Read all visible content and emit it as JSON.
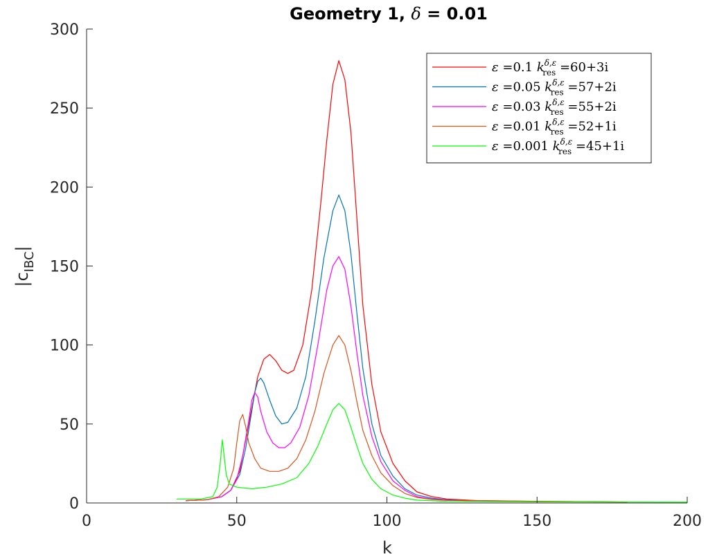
{
  "chart_data": {
    "type": "line",
    "title_prefix": "Geometry 1, ",
    "title_delta": "δ",
    "title_suffix": " = 0.01",
    "xlabel": "k",
    "ylabel_main": "|c",
    "ylabel_sub": "IBC",
    "ylabel_end": "|",
    "xlim": [
      0,
      200
    ],
    "ylim": [
      0,
      300
    ],
    "xticks": [
      0,
      50,
      100,
      150,
      200
    ],
    "yticks": [
      0,
      50,
      100,
      150,
      200,
      250,
      300
    ],
    "legend_position": "top-right",
    "series": [
      {
        "name": "ε =0.1 k_res^{δ,ε} =60+3i",
        "eps": "0.1",
        "kres": "=60+3i",
        "color": "#ff0000",
        "points": [
          [
            33,
            1.5
          ],
          [
            40,
            2
          ],
          [
            45,
            4
          ],
          [
            48,
            8
          ],
          [
            51,
            20
          ],
          [
            54,
            50
          ],
          [
            57,
            80
          ],
          [
            59,
            91
          ],
          [
            61,
            94
          ],
          [
            63,
            90
          ],
          [
            65,
            84
          ],
          [
            67,
            82
          ],
          [
            69,
            84
          ],
          [
            72,
            100
          ],
          [
            75,
            135
          ],
          [
            78,
            190
          ],
          [
            80,
            230
          ],
          [
            82,
            265
          ],
          [
            84,
            280
          ],
          [
            86,
            268
          ],
          [
            88,
            235
          ],
          [
            90,
            180
          ],
          [
            92,
            125
          ],
          [
            95,
            75
          ],
          [
            98,
            45
          ],
          [
            102,
            25
          ],
          [
            106,
            14
          ],
          [
            110,
            7
          ],
          [
            115,
            4
          ],
          [
            120,
            2.5
          ],
          [
            130,
            1.5
          ],
          [
            150,
            1
          ],
          [
            180,
            0.6
          ]
        ]
      },
      {
        "name": "ε =0.05 k_res^{δ,ε} =57+2i",
        "eps": "0.05",
        "kres": "=57+2i",
        "color": "#0072bd",
        "points": [
          [
            33,
            1.5
          ],
          [
            40,
            2
          ],
          [
            45,
            4
          ],
          [
            48,
            8
          ],
          [
            51,
            18
          ],
          [
            53,
            35
          ],
          [
            55,
            58
          ],
          [
            56,
            70
          ],
          [
            57,
            77
          ],
          [
            58,
            79
          ],
          [
            59,
            76
          ],
          [
            61,
            65
          ],
          [
            63,
            55
          ],
          [
            65,
            50
          ],
          [
            67,
            51
          ],
          [
            70,
            60
          ],
          [
            73,
            80
          ],
          [
            76,
            115
          ],
          [
            79,
            155
          ],
          [
            82,
            185
          ],
          [
            84,
            195
          ],
          [
            86,
            185
          ],
          [
            88,
            158
          ],
          [
            90,
            120
          ],
          [
            92,
            85
          ],
          [
            95,
            50
          ],
          [
            98,
            30
          ],
          [
            102,
            17
          ],
          [
            106,
            9
          ],
          [
            110,
            5
          ],
          [
            115,
            3
          ],
          [
            120,
            2
          ],
          [
            130,
            1.2
          ],
          [
            150,
            0.8
          ],
          [
            180,
            0.6
          ]
        ]
      },
      {
        "name": "ε =0.03 k_res^{δ,ε} =55+2i",
        "eps": "0.03",
        "kres": "=55+2i",
        "color": "#ff00ff",
        "points": [
          [
            33,
            1.5
          ],
          [
            40,
            2
          ],
          [
            45,
            4
          ],
          [
            48,
            8
          ],
          [
            50,
            15
          ],
          [
            52,
            30
          ],
          [
            54,
            52
          ],
          [
            55,
            65
          ],
          [
            56,
            70
          ],
          [
            57,
            67
          ],
          [
            58,
            58
          ],
          [
            60,
            45
          ],
          [
            62,
            38
          ],
          [
            64,
            35
          ],
          [
            66,
            35
          ],
          [
            68,
            38
          ],
          [
            71,
            48
          ],
          [
            74,
            68
          ],
          [
            77,
            100
          ],
          [
            80,
            135
          ],
          [
            82,
            150
          ],
          [
            84,
            156
          ],
          [
            86,
            148
          ],
          [
            88,
            125
          ],
          [
            90,
            95
          ],
          [
            92,
            68
          ],
          [
            95,
            42
          ],
          [
            98,
            26
          ],
          [
            102,
            14
          ],
          [
            106,
            8
          ],
          [
            110,
            4
          ],
          [
            115,
            2.5
          ],
          [
            120,
            1.8
          ],
          [
            130,
            1.2
          ],
          [
            150,
            0.8
          ],
          [
            180,
            0.6
          ]
        ]
      },
      {
        "name": "ε =0.01 k_res^{δ,ε} =52+1i",
        "eps": "0.01",
        "kres": "=52+1i",
        "color": "#d95319",
        "points": [
          [
            33,
            1.5
          ],
          [
            40,
            2
          ],
          [
            44,
            4
          ],
          [
            47,
            10
          ],
          [
            49,
            22
          ],
          [
            50,
            38
          ],
          [
            51,
            52
          ],
          [
            52,
            56
          ],
          [
            53,
            48
          ],
          [
            54,
            38
          ],
          [
            56,
            28
          ],
          [
            58,
            22
          ],
          [
            61,
            20
          ],
          [
            64,
            20
          ],
          [
            67,
            22
          ],
          [
            70,
            28
          ],
          [
            73,
            40
          ],
          [
            76,
            58
          ],
          [
            79,
            82
          ],
          [
            82,
            100
          ],
          [
            84,
            106
          ],
          [
            86,
            100
          ],
          [
            88,
            84
          ],
          [
            90,
            64
          ],
          [
            92,
            46
          ],
          [
            95,
            30
          ],
          [
            98,
            19
          ],
          [
            102,
            11
          ],
          [
            106,
            6
          ],
          [
            110,
            3.5
          ],
          [
            115,
            2.2
          ],
          [
            120,
            1.6
          ],
          [
            133,
            1.5
          ],
          [
            150,
            1
          ],
          [
            180,
            0.6
          ]
        ]
      },
      {
        "name": "ε =0.001 k_res^{δ,ε} =45+1i",
        "eps": "0.001",
        "kres": "=45+1i",
        "color": "#00ff00",
        "points": [
          [
            30,
            2.5
          ],
          [
            38,
            2.5
          ],
          [
            42,
            4
          ],
          [
            43.5,
            10
          ],
          [
            44.5,
            25
          ],
          [
            45.2,
            40
          ],
          [
            45.8,
            30
          ],
          [
            46.5,
            18
          ],
          [
            47.5,
            12
          ],
          [
            50,
            10
          ],
          [
            55,
            9
          ],
          [
            60,
            10
          ],
          [
            65,
            12
          ],
          [
            70,
            16
          ],
          [
            74,
            25
          ],
          [
            77,
            36
          ],
          [
            80,
            50
          ],
          [
            82,
            59
          ],
          [
            84,
            63
          ],
          [
            86,
            59
          ],
          [
            88,
            48
          ],
          [
            90,
            36
          ],
          [
            92,
            25
          ],
          [
            95,
            15
          ],
          [
            98,
            9
          ],
          [
            102,
            5
          ],
          [
            106,
            3
          ],
          [
            110,
            1.8
          ],
          [
            120,
            1
          ],
          [
            140,
            0.8
          ],
          [
            170,
            0.6
          ],
          [
            200,
            0.5
          ]
        ]
      }
    ]
  }
}
